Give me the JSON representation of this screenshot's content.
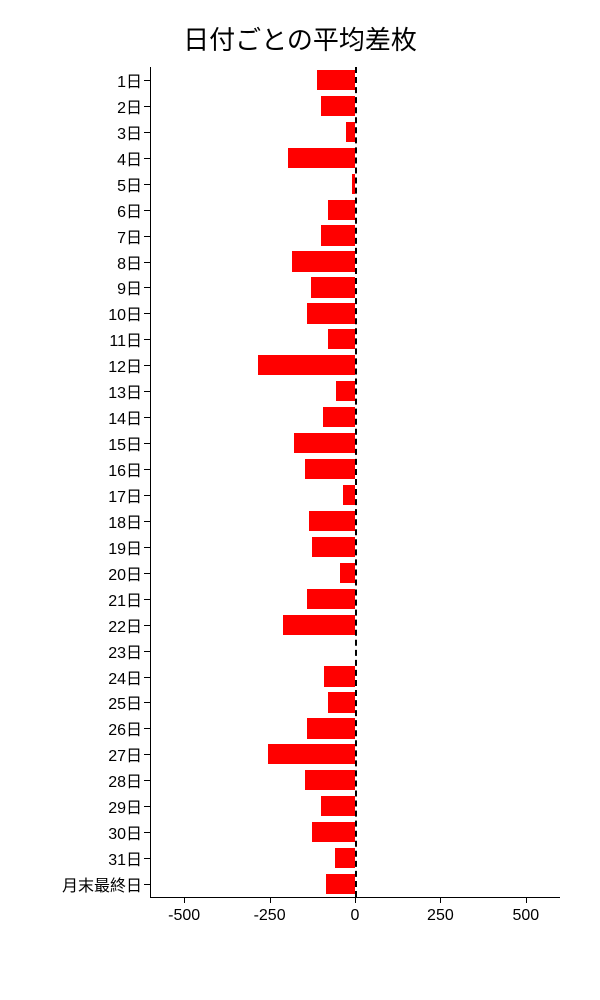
{
  "chart": {
    "type": "bar-horizontal",
    "title": "日付ごとの平均差枚",
    "title_fontsize": 26,
    "background_color": "#ffffff",
    "bar_color": "#ff0000",
    "axis_color": "#000000",
    "text_color": "#000000",
    "label_fontsize": 16,
    "xlim": [
      -600,
      600
    ],
    "xticks": [
      -500,
      -250,
      0,
      250,
      500
    ],
    "xtick_labels": [
      "-500",
      "-250",
      "0",
      "250",
      "500"
    ],
    "zero_line_style": "dashed",
    "bar_height_ratio": 0.78,
    "categories": [
      "1日",
      "2日",
      "3日",
      "4日",
      "5日",
      "6日",
      "7日",
      "8日",
      "9日",
      "10日",
      "11日",
      "12日",
      "13日",
      "14日",
      "15日",
      "16日",
      "17日",
      "18日",
      "19日",
      "20日",
      "21日",
      "22日",
      "23日",
      "24日",
      "25日",
      "26日",
      "27日",
      "28日",
      "29日",
      "30日",
      "31日",
      "月末最終日"
    ],
    "values": [
      -110,
      -100,
      -25,
      -195,
      -10,
      -80,
      -100,
      -185,
      -130,
      -140,
      -80,
      -285,
      -55,
      -95,
      -180,
      -145,
      -35,
      -135,
      -125,
      -45,
      -140,
      -210,
      0,
      -90,
      -80,
      -140,
      -255,
      -145,
      -100,
      -125,
      -60,
      -85
    ]
  }
}
